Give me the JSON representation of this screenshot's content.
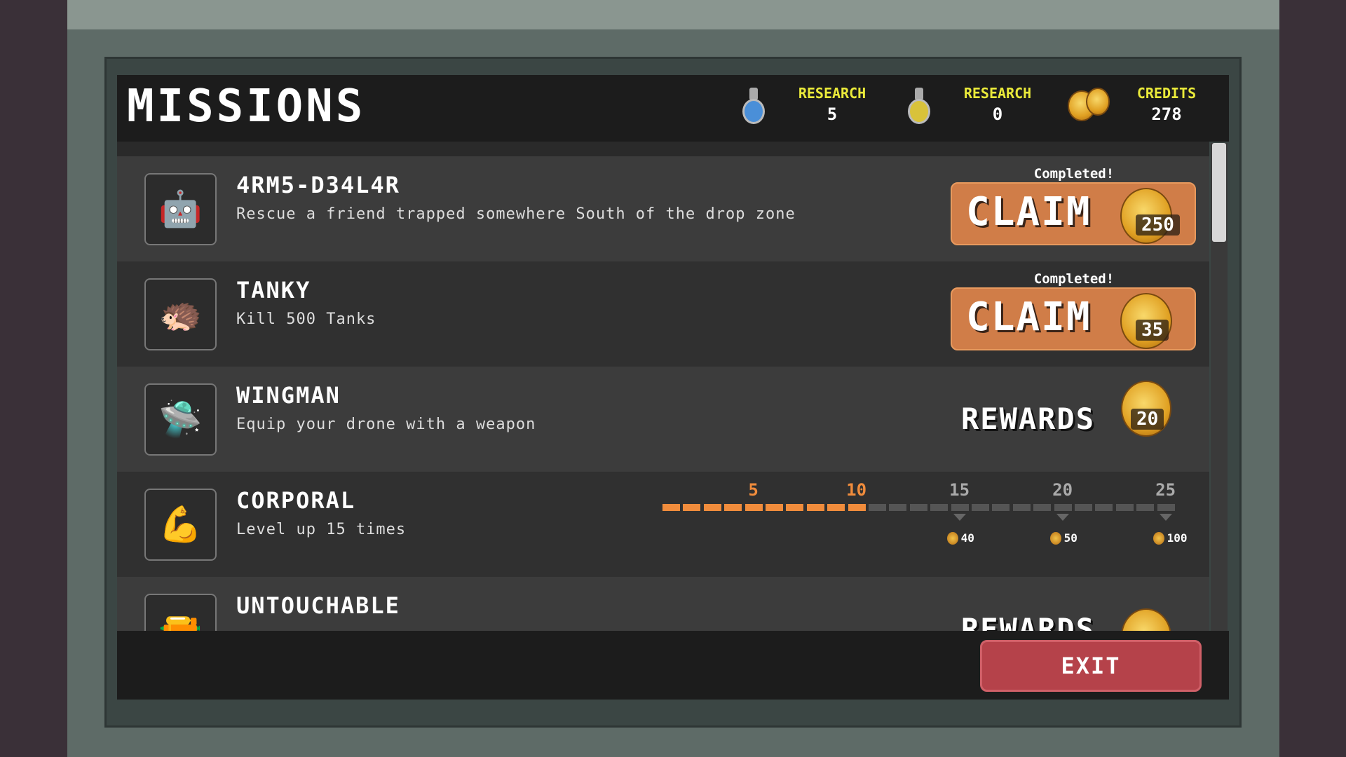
{
  "header": {
    "title": "MISSIONS",
    "currencies": [
      {
        "icon": "blue-flask-icon",
        "label": "RESEARCH",
        "value": "5",
        "color": "#4a8fd8"
      },
      {
        "icon": "yellow-flask-icon",
        "label": "RESEARCH",
        "value": "0",
        "color": "#d8c23a"
      },
      {
        "icon": "coins-icon",
        "label": "CREDITS",
        "value": "278"
      }
    ]
  },
  "missions": [
    {
      "title": "4RM5-D34L4R",
      "desc": "Rescue a friend trapped somewhere South of the drop zone",
      "status": "Completed!",
      "button": "CLAIM",
      "reward": "250"
    },
    {
      "title": "TANKY",
      "desc": "Kill 500 Tanks",
      "status": "Completed!",
      "button": "CLAIM",
      "reward": "35"
    },
    {
      "title": "WINGMAN",
      "desc": "Equip your drone with a weapon",
      "button": "REWARDS",
      "reward": "20"
    },
    {
      "title": "CORPORAL",
      "desc": "Level up 15 times",
      "progress": {
        "current": 10,
        "max": 25,
        "ticks": [
          "5",
          "10",
          "15",
          "20",
          "25"
        ],
        "milestones": [
          {
            "at": 15,
            "reward": "40"
          },
          {
            "at": 20,
            "reward": "50"
          },
          {
            "at": 25,
            "reward": "100"
          }
        ]
      }
    },
    {
      "title": "UNTOUCHABLE",
      "button": "REWARDS"
    }
  ],
  "colors": {
    "accent": "#f08c3c",
    "claim": "#d07d48",
    "exit": "#b5424a",
    "label": "#eaea3a"
  },
  "footer": {
    "exit_label": "EXIT"
  }
}
